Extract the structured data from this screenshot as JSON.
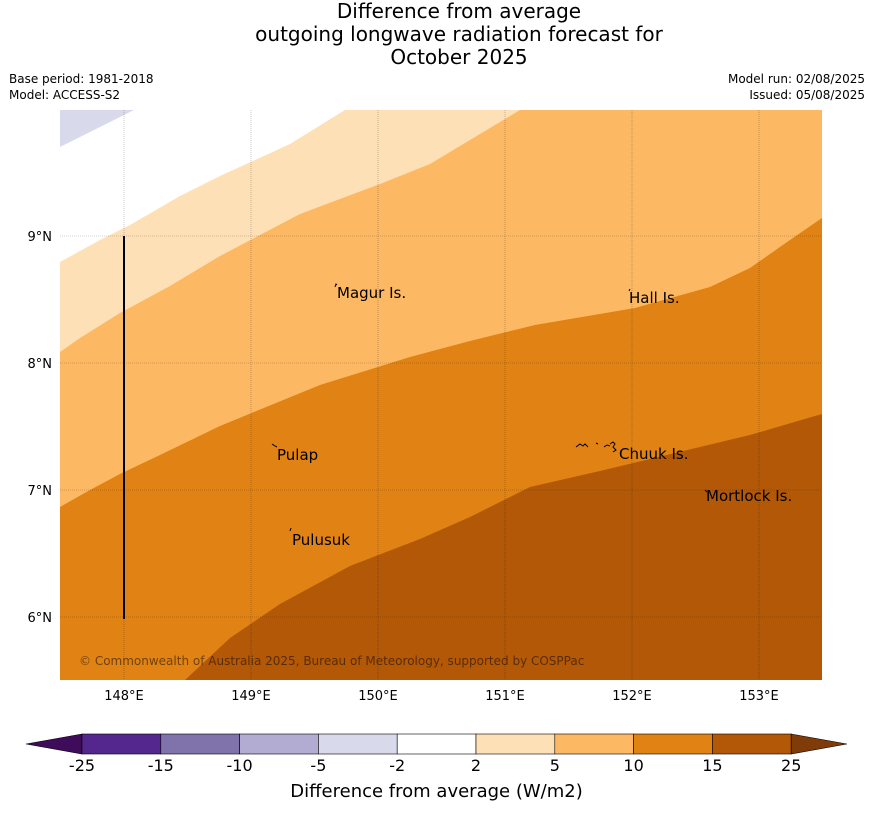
{
  "title": {
    "line1": "Difference from average",
    "line2": "outgoing longwave radiation forecast for",
    "line3": "October 2025"
  },
  "meta": {
    "base_period": "Base period: 1981-2018",
    "model": "Model: ACCESS-S2",
    "model_run": "Model run: 02/08/2025",
    "issued": "Issued: 05/08/2025"
  },
  "map": {
    "lat_labels": [
      "9°N",
      "8°N",
      "7°N",
      "6°N"
    ],
    "lon_labels": [
      "148°E",
      "149°E",
      "150°E",
      "151°E",
      "152°E",
      "153°E"
    ],
    "places": [
      "Magur Is.",
      "Hall Is.",
      "Pulap",
      "Chuuk Is.",
      "Mortlock Is.",
      "Pulusuk"
    ],
    "copyright": "© Commonwealth of Australia 2025, Bureau of Meteorology, supported by COSPPac"
  },
  "colorbar": {
    "ticks": [
      "-25",
      "-15",
      "-10",
      "-5",
      "-2",
      "2",
      "5",
      "10",
      "15",
      "25"
    ],
    "colors": [
      "#3f0c5c",
      "#54278f",
      "#8073ac",
      "#b2abd2",
      "#d8daeb",
      "#ffffff",
      "#fee0b6",
      "#fdb863",
      "#e08214",
      "#b35806",
      "#7f3b08"
    ],
    "label": "Difference from average (W/m2)"
  }
}
